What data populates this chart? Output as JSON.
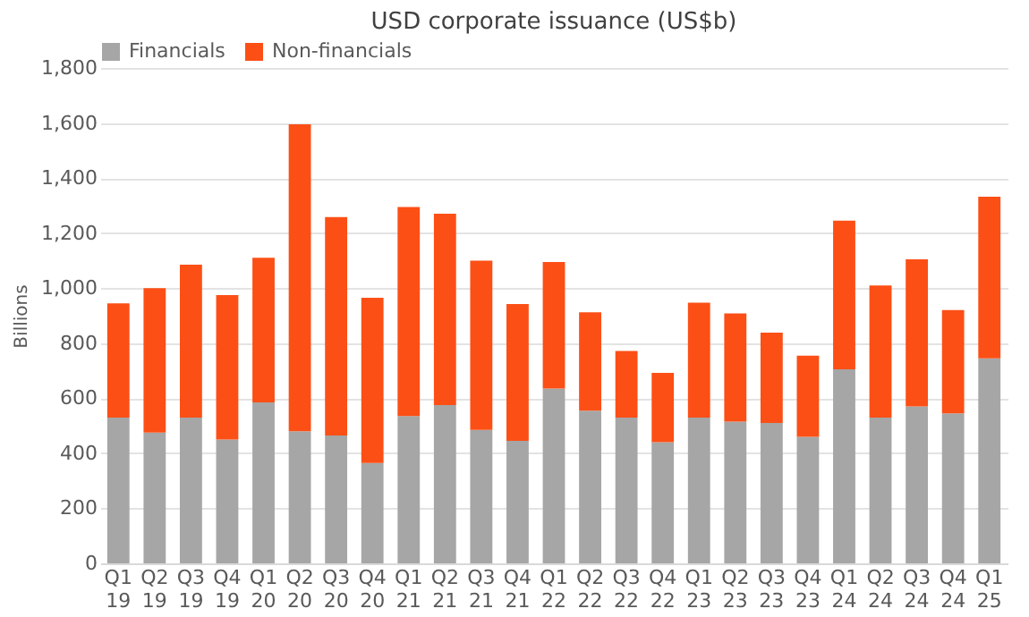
{
  "chart_data": {
    "type": "bar",
    "stacked": true,
    "title": "USD corporate issuance (US$b)",
    "ylabel": "Billions",
    "categories": [
      "Q1 19",
      "Q2 19",
      "Q3 19",
      "Q4 19",
      "Q1 20",
      "Q2 20",
      "Q3 20",
      "Q4 20",
      "Q1 21",
      "Q2 21",
      "Q3 21",
      "Q4 21",
      "Q1 22",
      "Q2 22",
      "Q3 22",
      "Q4 22",
      "Q1 23",
      "Q2 23",
      "Q3 23",
      "Q4 23",
      "Q1 24",
      "Q2 24",
      "Q3 24",
      "Q4 24",
      "Q1 25"
    ],
    "series": [
      {
        "name": "Financials",
        "color": "#a6a6a6",
        "values": [
          530,
          475,
          530,
          450,
          585,
          480,
          465,
          365,
          535,
          575,
          485,
          445,
          635,
          555,
          530,
          440,
          530,
          515,
          510,
          460,
          705,
          530,
          570,
          545,
          745
        ]
      },
      {
        "name": "Non-financials",
        "color": "#fc4f16",
        "values": [
          415,
          525,
          555,
          525,
          525,
          1115,
          793,
          600,
          760,
          695,
          615,
          497,
          460,
          357,
          242,
          252,
          417,
          393,
          328,
          295,
          540,
          480,
          535,
          375,
          587
        ]
      }
    ],
    "ylim": [
      0,
      1800
    ],
    "yticks": [
      {
        "value": 0,
        "label": "0"
      },
      {
        "value": 200,
        "label": "200"
      },
      {
        "value": 400,
        "label": "400"
      },
      {
        "value": 600,
        "label": "600"
      },
      {
        "value": 800,
        "label": "800"
      },
      {
        "value": 1000,
        "label": "1,000"
      },
      {
        "value": 1200,
        "label": "1,200"
      },
      {
        "value": 1400,
        "label": "1,400"
      },
      {
        "value": 1600,
        "label": "1,600"
      },
      {
        "value": 1800,
        "label": "1,800"
      }
    ],
    "grid": "y",
    "legend": "top"
  }
}
